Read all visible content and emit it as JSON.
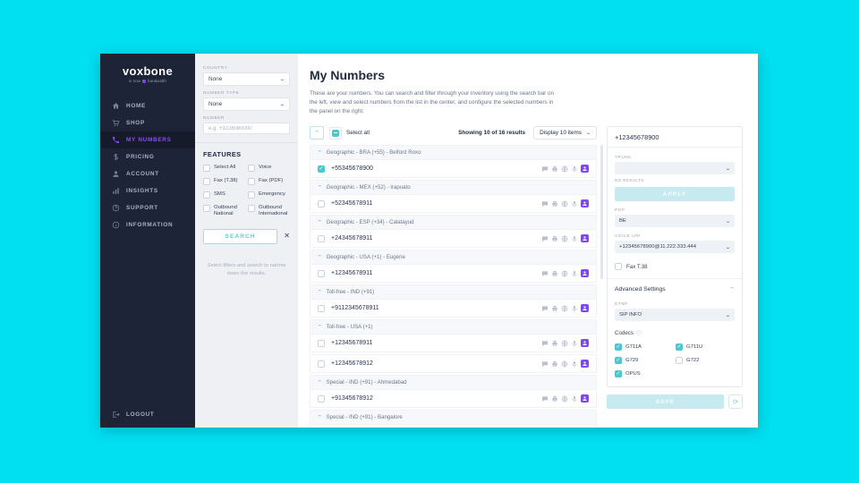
{
  "colors": {
    "background": "#00e0f0",
    "sidebar": "#1d2438",
    "accent_purple": "#8247f5",
    "accent_teal": "#4ec6cf"
  },
  "sidebar": {
    "logo": "voxbone",
    "tagline_prefix": "is now",
    "tagline_suffix": "bandwidth",
    "items": [
      {
        "label": "HOME",
        "icon": "home-icon",
        "active": false
      },
      {
        "label": "SHOP",
        "icon": "cart-icon",
        "active": false
      },
      {
        "label": "MY NUMBERS",
        "icon": "phone-icon",
        "active": true
      },
      {
        "label": "PRICING",
        "icon": "dollar-icon",
        "active": false
      },
      {
        "label": "ACCOUNT",
        "icon": "person-icon",
        "active": false
      },
      {
        "label": "INSIGHTS",
        "icon": "chart-icon",
        "active": false
      },
      {
        "label": "SUPPORT",
        "icon": "question-icon",
        "active": false
      },
      {
        "label": "INFORMATION",
        "icon": "info-icon",
        "active": false
      }
    ],
    "logout": "LOGOUT"
  },
  "filters": {
    "country_label": "COUNTRY",
    "country_value": "None",
    "number_type_label": "NUMBER TYPE",
    "number_type_value": "None",
    "number_label": "NUMBER",
    "number_placeholder": "e.g. +3228080000",
    "features_title": "FEATURES",
    "features": [
      {
        "label": "Select All",
        "checked": false
      },
      {
        "label": "Voice",
        "checked": false
      },
      {
        "label": "Fax (T.38)",
        "checked": false
      },
      {
        "label": "Fax (PDF)",
        "checked": false
      },
      {
        "label": "SMS",
        "checked": false
      },
      {
        "label": "Emergency",
        "checked": false
      },
      {
        "label": "Outbound National",
        "checked": false
      },
      {
        "label": "Outbound International",
        "checked": false
      }
    ],
    "search_label": "SEARCH",
    "clear_icon": "✕",
    "help_text": "Select filters and search to narrow down the results."
  },
  "main": {
    "title": "My Numbers",
    "description": "These are your numbers. You can search and filter through your inventory using the search bar on the left, view and select numbers from the list in the center, and configure the selected numbers in the panel on the right.",
    "select_all_label": "Select all",
    "showing": "Showing 10 of 16 results",
    "display": "Display 10 items",
    "row_icons": [
      "chat-icon",
      "fax-icon",
      "globe-icon",
      "mic-icon",
      "user-badge-icon"
    ],
    "groups": [
      {
        "header": "Geographic - BRA (+55) - Belford Roxo",
        "rows": [
          {
            "number": "+55345678900",
            "checked": true
          }
        ]
      },
      {
        "header": "Geographic - MEX (+52) - Irapuato",
        "rows": [
          {
            "number": "+52345678911",
            "checked": false
          }
        ]
      },
      {
        "header": "Geographic - ESP (+34) - Calatayud",
        "rows": [
          {
            "number": "+24345678911",
            "checked": false
          }
        ]
      },
      {
        "header": "Geographic - USA (+1) - Eugene",
        "rows": [
          {
            "number": "+12345678911",
            "checked": false
          }
        ]
      },
      {
        "header": "Toll-free - IND (+91)",
        "rows": [
          {
            "number": "+9112345678911",
            "checked": false
          }
        ]
      },
      {
        "header": "Toll-free - USA (+1)",
        "rows": [
          {
            "number": "+12345678911",
            "checked": false
          },
          {
            "number": "+12345678912",
            "checked": false
          }
        ]
      },
      {
        "header": "Special - IND (+91) - Ahmedabad",
        "rows": [
          {
            "number": "+91345678912",
            "checked": false
          }
        ]
      },
      {
        "header": "Special - IND (+91) - Bangalore",
        "rows": [
          {
            "number": "",
            "checked": false
          }
        ]
      }
    ]
  },
  "panel": {
    "header": "+12345678900",
    "trunk_label": "TRUNK",
    "trunk_value": "",
    "no_results": "NO RESULTS",
    "apply_label": "APPLY",
    "pop_label": "POP",
    "pop_value": "BE",
    "voice_uri_label": "VOICE URI",
    "voice_uri_value": "+12345678900@11.222.333.444",
    "fax_label": "Fax T.38",
    "fax_checked": false,
    "advanced_label": "Advanced Settings",
    "dtmf_label": "DTMF",
    "dtmf_value": "SIP INFO",
    "codecs_label": "Codecs",
    "codecs": [
      {
        "label": "G711A",
        "checked": true
      },
      {
        "label": "G711U",
        "checked": true
      },
      {
        "label": "G729",
        "checked": true
      },
      {
        "label": "G722",
        "checked": false
      },
      {
        "label": "OPUS",
        "checked": true
      }
    ],
    "save_label": "SAVE"
  }
}
